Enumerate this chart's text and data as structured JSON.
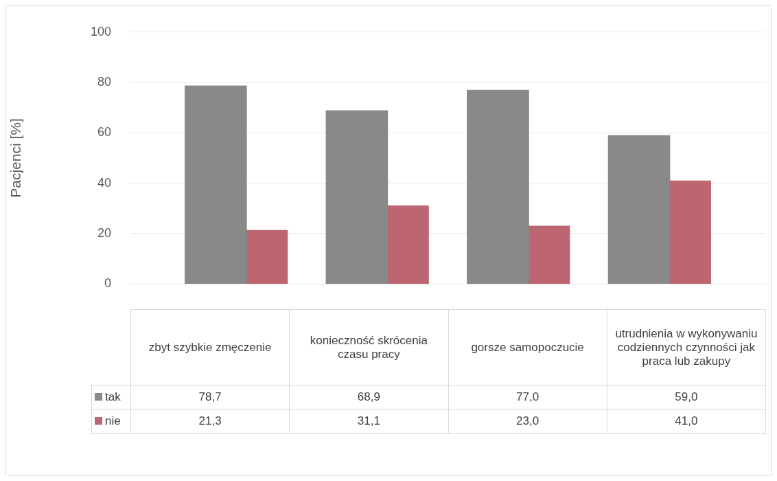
{
  "chart_data": {
    "type": "bar",
    "ylabel": "Pacjenci [%]",
    "categories": [
      "zbyt szybkie zmęczenie",
      "konieczność skrócenia czasu pracy",
      "gorsze samopoczucie",
      "utrudnienia w wykonywaniu codziennych czynności jak praca lub zakupy"
    ],
    "series": [
      {
        "name": "tak",
        "color": "#898989",
        "values": [
          78.7,
          68.9,
          77.0,
          59.0
        ],
        "value_labels": [
          "78,7",
          "68,9",
          "77,0",
          "59,0"
        ]
      },
      {
        "name": "nie",
        "color": "#bb6670",
        "values": [
          21.3,
          31.1,
          23.0,
          41.0
        ],
        "value_labels": [
          "21,3",
          "31,1",
          "23,0",
          "41,0"
        ]
      }
    ],
    "ylim": [
      0,
      100
    ],
    "yticks": [
      0,
      20,
      40,
      60,
      80,
      100
    ],
    "grid": "y",
    "legend": "bottom"
  }
}
